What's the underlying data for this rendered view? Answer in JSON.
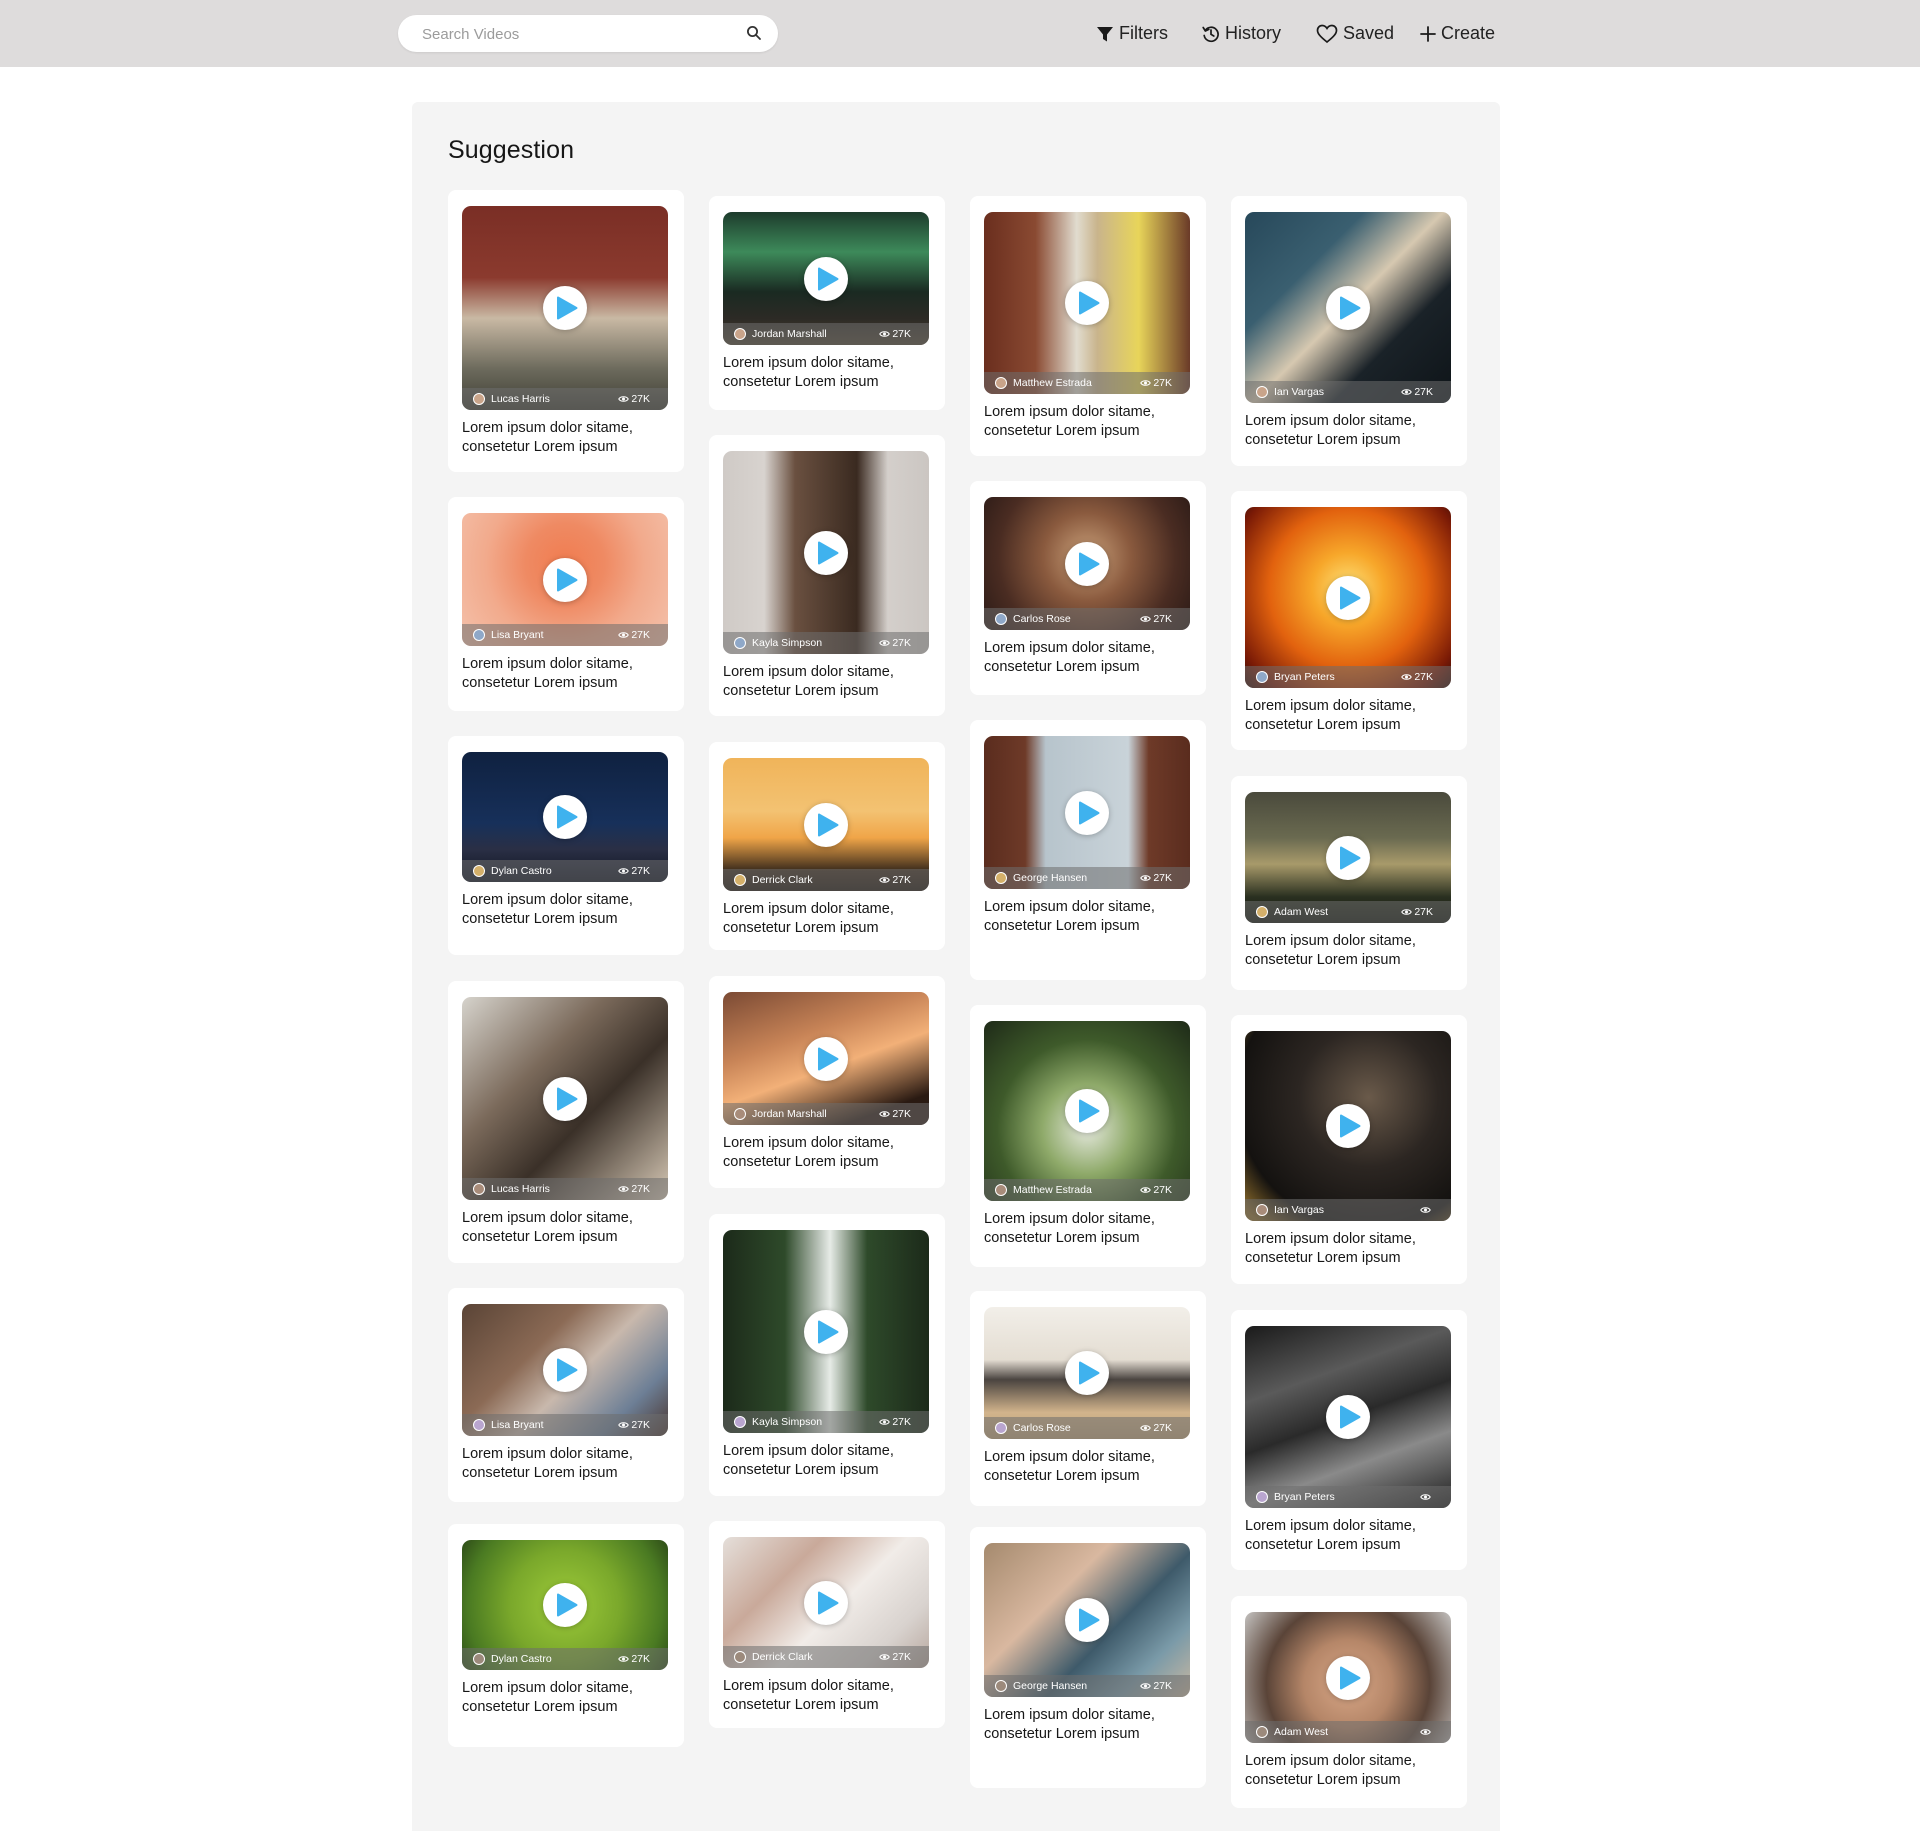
{
  "search": {
    "placeholder": "Search Videos"
  },
  "nav": {
    "filters": "Filters",
    "history": "History",
    "saved": "Saved",
    "create": "Create"
  },
  "colors": {
    "play_accent": "#3fb2ee",
    "topbar": "#dedcdc",
    "panel": "#f4f4f4"
  },
  "section_title": "Suggestion",
  "columns": [
    [
      {
        "author": "Lucas Harris",
        "views": "27K",
        "title": "Lorem ipsum dolor sitame, consetetur Lorem ipsum"
      },
      {
        "author": "Lisa Bryant",
        "views": "27K",
        "title": "Lorem ipsum dolor sitame, consetetur Lorem ipsum"
      },
      {
        "author": "Dylan Castro",
        "views": "27K",
        "title": "Lorem ipsum dolor sitame, consetetur Lorem ipsum"
      },
      {
        "author": "Lucas Harris",
        "views": "27K",
        "title": "Lorem ipsum dolor sitame, consetetur Lorem ipsum"
      },
      {
        "author": "Lisa Bryant",
        "views": "27K",
        "title": "Lorem ipsum dolor sitame, consetetur Lorem ipsum"
      },
      {
        "author": "Dylan Castro",
        "views": "27K",
        "title": "Lorem ipsum dolor sitame, consetetur Lorem ipsum"
      }
    ],
    [
      {
        "author": "Jordan Marshall",
        "views": "27K",
        "title": "Lorem ipsum dolor sitame, consetetur Lorem ipsum"
      },
      {
        "author": "Kayla Simpson",
        "views": "27K",
        "title": "Lorem ipsum dolor sitame, consetetur Lorem ipsum"
      },
      {
        "author": "Derrick Clark",
        "views": "27K",
        "title": "Lorem ipsum dolor sitame, consetetur Lorem ipsum"
      },
      {
        "author": "Jordan Marshall",
        "views": "27K",
        "title": "Lorem ipsum dolor sitame, consetetur Lorem ipsum"
      },
      {
        "author": "Kayla Simpson",
        "views": "27K",
        "title": "Lorem ipsum dolor sitame, consetetur Lorem ipsum"
      },
      {
        "author": "Derrick Clark",
        "views": "27K",
        "title": "Lorem ipsum dolor sitame, consetetur Lorem ipsum"
      }
    ],
    [
      {
        "author": "Matthew Estrada",
        "views": "27K",
        "title": "Lorem ipsum dolor sitame, consetetur Lorem ipsum"
      },
      {
        "author": "Carlos Rose",
        "views": "27K",
        "title": "Lorem ipsum dolor sitame, consetetur Lorem ipsum"
      },
      {
        "author": "George Hansen",
        "views": "27K",
        "title": "Lorem ipsum dolor sitame, consetetur Lorem ipsum"
      },
      {
        "author": "Matthew Estrada",
        "views": "27K",
        "title": "Lorem ipsum dolor sitame, consetetur Lorem ipsum"
      },
      {
        "author": "Carlos Rose",
        "views": "27K",
        "title": "Lorem ipsum dolor sitame, consetetur Lorem ipsum"
      },
      {
        "author": "George Hansen",
        "views": "27K",
        "title": "Lorem ipsum dolor sitame, consetetur Lorem ipsum"
      }
    ],
    [
      {
        "author": "Ian Vargas",
        "views": "27K",
        "title": "Lorem ipsum dolor sitame, consetetur Lorem ipsum"
      },
      {
        "author": "Bryan Peters",
        "views": "27K",
        "title": "Lorem ipsum dolor sitame, consetetur Lorem ipsum"
      },
      {
        "author": "Adam West",
        "views": "27K",
        "title": "Lorem ipsum dolor sitame, consetetur Lorem ipsum"
      },
      {
        "author": "Ian Vargas",
        "views": "",
        "title": "Lorem ipsum dolor sitame, consetetur Lorem ipsum"
      },
      {
        "author": "Bryan Peters",
        "views": "",
        "title": "Lorem ipsum dolor sitame, consetetur Lorem ipsum"
      },
      {
        "author": "Adam West",
        "views": "",
        "title": "Lorem ipsum dolor sitame, consetetur Lorem ipsum"
      }
    ]
  ]
}
